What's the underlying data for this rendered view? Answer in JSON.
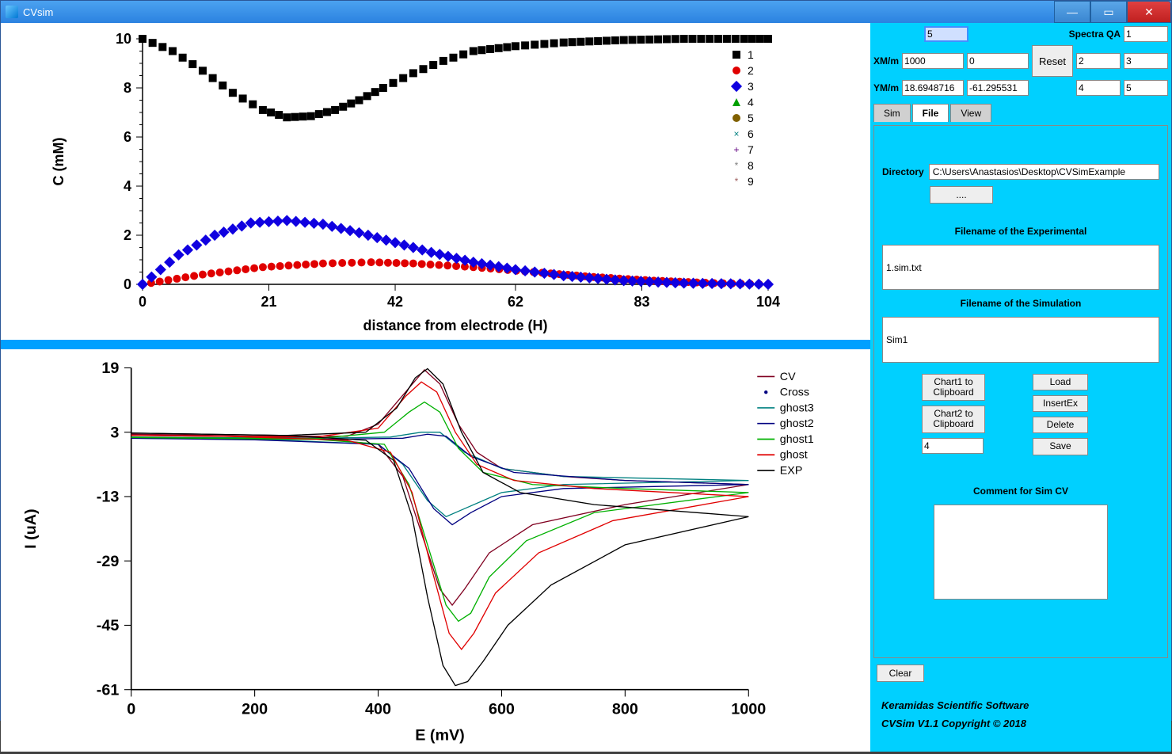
{
  "app_title": "CVsim",
  "top_controls": {
    "input1": "5",
    "spectra_qa_label": "Spectra QA",
    "spectra_qa_value": "1",
    "xm_label": "XM/m",
    "xm_a": "1000",
    "xm_b": "0",
    "reset_label": "Reset",
    "grid_2": "2",
    "grid_3": "3",
    "ym_label": "YM/m",
    "ym_a": "18.6948716",
    "ym_b": "-61.295531",
    "grid_4": "4",
    "grid_5": "5"
  },
  "tabs": {
    "sim": "Sim",
    "file": "File",
    "view": "View",
    "active": "file"
  },
  "file_panel": {
    "directory_label": "Directory",
    "directory_value": "C:\\Users\\Anastasios\\Desktop\\CVSimExample",
    "browse_label": "....",
    "exp_header": "Filename of the Experimental",
    "exp_value": "1.sim.txt",
    "sim_header": "Filename of the Simulation",
    "sim_value": "Sim1",
    "chart1_btn": "Chart1 to\nClipboard",
    "chart2_btn": "Chart2 to\nClipboard",
    "num_value": "4",
    "load_btn": "Load",
    "insert_btn": "InsertEx",
    "delete_btn": "Delete",
    "save_btn": "Save",
    "comment_label": "Comment for Sim CV",
    "clear_btn": "Clear"
  },
  "footer": {
    "line1": "Keramidas Scientific Software",
    "line2": "CVSim V1.1 Copyright ©  2018"
  },
  "chart1": {
    "ylabel": "C (mM)",
    "xlabel": "distance from electrode (H)",
    "xticks": [
      0,
      21,
      42,
      62,
      83,
      104
    ],
    "yticks": [
      0,
      2,
      4,
      6,
      8,
      10
    ],
    "xlim": [
      0,
      104
    ],
    "ylim": [
      0,
      10
    ],
    "bg": "#ffffff",
    "font_size_label": 18,
    "font_size_tick": 18,
    "marker_size": 5,
    "legend": [
      {
        "label": "1",
        "color": "#000000",
        "marker": "square"
      },
      {
        "label": "2",
        "color": "#e00000",
        "marker": "circle"
      },
      {
        "label": "3",
        "color": "#1000e0",
        "marker": "diamond"
      },
      {
        "label": "4",
        "color": "#00a000",
        "marker": "triangle"
      },
      {
        "label": "5",
        "color": "#806000",
        "marker": "circle"
      },
      {
        "label": "6",
        "color": "#008080",
        "marker": "x"
      },
      {
        "label": "7",
        "color": "#600080",
        "marker": "plus"
      },
      {
        "label": "8",
        "color": "#808080",
        "marker": "star"
      },
      {
        "label": "9",
        "color": "#a06060",
        "marker": "star"
      }
    ],
    "series": [
      {
        "id": "1",
        "color": "#000000",
        "marker": "square",
        "points": [
          [
            0,
            10
          ],
          [
            5,
            9.5
          ],
          [
            10,
            8.7
          ],
          [
            15,
            7.8
          ],
          [
            20,
            7.1
          ],
          [
            24,
            6.8
          ],
          [
            28,
            6.85
          ],
          [
            32,
            7.1
          ],
          [
            36,
            7.5
          ],
          [
            40,
            8.0
          ],
          [
            45,
            8.6
          ],
          [
            50,
            9.1
          ],
          [
            55,
            9.5
          ],
          [
            62,
            9.7
          ],
          [
            70,
            9.85
          ],
          [
            80,
            9.95
          ],
          [
            90,
            10
          ],
          [
            100,
            10
          ],
          [
            104,
            10
          ]
        ]
      },
      {
        "id": "2",
        "color": "#e00000",
        "marker": "circle",
        "points": [
          [
            0,
            0
          ],
          [
            10,
            0.4
          ],
          [
            20,
            0.7
          ],
          [
            30,
            0.85
          ],
          [
            38,
            0.9
          ],
          [
            45,
            0.85
          ],
          [
            55,
            0.7
          ],
          [
            65,
            0.5
          ],
          [
            75,
            0.3
          ],
          [
            85,
            0.15
          ],
          [
            95,
            0.05
          ],
          [
            104,
            0
          ]
        ]
      },
      {
        "id": "3",
        "color": "#1000e0",
        "marker": "diamond",
        "points": [
          [
            0,
            0
          ],
          [
            6,
            1.2
          ],
          [
            12,
            2.0
          ],
          [
            18,
            2.5
          ],
          [
            24,
            2.6
          ],
          [
            30,
            2.45
          ],
          [
            36,
            2.1
          ],
          [
            42,
            1.7
          ],
          [
            48,
            1.3
          ],
          [
            55,
            0.9
          ],
          [
            62,
            0.6
          ],
          [
            70,
            0.35
          ],
          [
            80,
            0.15
          ],
          [
            90,
            0.05
          ],
          [
            104,
            0
          ]
        ]
      }
    ]
  },
  "chart2": {
    "ylabel": "I (uA)",
    "xlabel": "E (mV)",
    "xticks": [
      0,
      200,
      400,
      600,
      800,
      1000
    ],
    "yticks": [
      -61,
      -45,
      -29,
      -13,
      3,
      19
    ],
    "xlim": [
      0,
      1000
    ],
    "ylim": [
      -61,
      19
    ],
    "bg": "#ffffff",
    "font_size_label": 18,
    "font_size_tick": 18,
    "line_width": 1.2,
    "legend": [
      {
        "label": "CV",
        "color": "#800020",
        "style": "line"
      },
      {
        "label": "Cross",
        "color": "#000080",
        "style": "dot"
      },
      {
        "label": "ghost3",
        "color": "#008080",
        "style": "line"
      },
      {
        "label": "ghost2",
        "color": "#000080",
        "style": "line"
      },
      {
        "label": "ghost1",
        "color": "#00b000",
        "style": "line"
      },
      {
        "label": "ghost",
        "color": "#e00000",
        "style": "line"
      },
      {
        "label": "EXP",
        "color": "#000000",
        "style": "line"
      }
    ],
    "traces": [
      {
        "id": "CV",
        "color": "#800020",
        "fwd": [
          [
            0,
            2.5
          ],
          [
            200,
            2
          ],
          [
            350,
            2
          ],
          [
            400,
            5
          ],
          [
            450,
            14
          ],
          [
            475,
            18.5
          ],
          [
            500,
            15
          ],
          [
            530,
            5
          ],
          [
            560,
            -2
          ],
          [
            600,
            -6
          ],
          [
            700,
            -8
          ],
          [
            800,
            -9
          ],
          [
            1000,
            -10
          ]
        ],
        "rev": [
          [
            1000,
            -10
          ],
          [
            800,
            -15
          ],
          [
            650,
            -20
          ],
          [
            580,
            -27
          ],
          [
            540,
            -36
          ],
          [
            520,
            -40
          ],
          [
            500,
            -36
          ],
          [
            470,
            -22
          ],
          [
            440,
            -8
          ],
          [
            400,
            0
          ],
          [
            300,
            1.5
          ],
          [
            100,
            2.3
          ],
          [
            0,
            2.5
          ]
        ]
      },
      {
        "id": "ghost3",
        "color": "#008080",
        "fwd": [
          [
            0,
            1.8
          ],
          [
            300,
            1.5
          ],
          [
            420,
            1.8
          ],
          [
            470,
            3
          ],
          [
            500,
            3
          ],
          [
            540,
            -2
          ],
          [
            600,
            -6
          ],
          [
            700,
            -8
          ],
          [
            1000,
            -9
          ]
        ],
        "rev": [
          [
            1000,
            -9
          ],
          [
            700,
            -10
          ],
          [
            600,
            -12
          ],
          [
            540,
            -16
          ],
          [
            510,
            -18
          ],
          [
            480,
            -14
          ],
          [
            440,
            -5
          ],
          [
            400,
            0
          ],
          [
            200,
            1.3
          ],
          [
            0,
            1.8
          ]
        ]
      },
      {
        "id": "ghost2",
        "color": "#000080",
        "fwd": [
          [
            0,
            1.5
          ],
          [
            300,
            1.2
          ],
          [
            440,
            1.5
          ],
          [
            480,
            2.5
          ],
          [
            510,
            2
          ],
          [
            550,
            -3
          ],
          [
            620,
            -7
          ],
          [
            800,
            -9
          ],
          [
            1000,
            -10
          ]
        ],
        "rev": [
          [
            1000,
            -10
          ],
          [
            700,
            -11
          ],
          [
            600,
            -13
          ],
          [
            550,
            -17
          ],
          [
            520,
            -20
          ],
          [
            490,
            -16
          ],
          [
            450,
            -6
          ],
          [
            400,
            0
          ],
          [
            200,
            1.1
          ],
          [
            0,
            1.5
          ]
        ]
      },
      {
        "id": "ghost1",
        "color": "#00b000",
        "fwd": [
          [
            0,
            1.7
          ],
          [
            300,
            1.4
          ],
          [
            410,
            3
          ],
          [
            450,
            8
          ],
          [
            475,
            10.5
          ],
          [
            500,
            8
          ],
          [
            530,
            -1
          ],
          [
            570,
            -7
          ],
          [
            650,
            -10
          ],
          [
            800,
            -11
          ],
          [
            1000,
            -12
          ]
        ],
        "rev": [
          [
            1000,
            -12
          ],
          [
            750,
            -17
          ],
          [
            640,
            -24
          ],
          [
            580,
            -33
          ],
          [
            550,
            -42
          ],
          [
            530,
            -44
          ],
          [
            510,
            -40
          ],
          [
            480,
            -25
          ],
          [
            450,
            -10
          ],
          [
            410,
            0
          ],
          [
            300,
            1.2
          ],
          [
            0,
            1.7
          ]
        ]
      },
      {
        "id": "ghost",
        "color": "#e00000",
        "fwd": [
          [
            0,
            2.2
          ],
          [
            300,
            1.8
          ],
          [
            400,
            4
          ],
          [
            445,
            12
          ],
          [
            470,
            15.5
          ],
          [
            495,
            13
          ],
          [
            525,
            3
          ],
          [
            560,
            -5
          ],
          [
            620,
            -9
          ],
          [
            750,
            -11
          ],
          [
            1000,
            -13
          ]
        ],
        "rev": [
          [
            1000,
            -13
          ],
          [
            780,
            -19
          ],
          [
            660,
            -27
          ],
          [
            590,
            -37
          ],
          [
            555,
            -47
          ],
          [
            535,
            -51
          ],
          [
            515,
            -47
          ],
          [
            485,
            -30
          ],
          [
            455,
            -12
          ],
          [
            420,
            -2
          ],
          [
            350,
            1
          ],
          [
            150,
            2
          ],
          [
            0,
            2.2
          ]
        ]
      },
      {
        "id": "EXP",
        "color": "#000000",
        "fwd": [
          [
            0,
            2.8
          ],
          [
            250,
            2.2
          ],
          [
            380,
            3
          ],
          [
            430,
            9
          ],
          [
            460,
            16.5
          ],
          [
            480,
            18.8
          ],
          [
            505,
            15
          ],
          [
            535,
            3
          ],
          [
            570,
            -7
          ],
          [
            630,
            -12
          ],
          [
            750,
            -15
          ],
          [
            1000,
            -18
          ]
        ],
        "rev": [
          [
            1000,
            -18
          ],
          [
            800,
            -25
          ],
          [
            680,
            -35
          ],
          [
            610,
            -45
          ],
          [
            570,
            -54
          ],
          [
            545,
            -59
          ],
          [
            525,
            -60
          ],
          [
            505,
            -55
          ],
          [
            480,
            -38
          ],
          [
            455,
            -18
          ],
          [
            425,
            -4
          ],
          [
            380,
            1
          ],
          [
            250,
            2.2
          ],
          [
            0,
            2.8
          ]
        ]
      }
    ]
  }
}
